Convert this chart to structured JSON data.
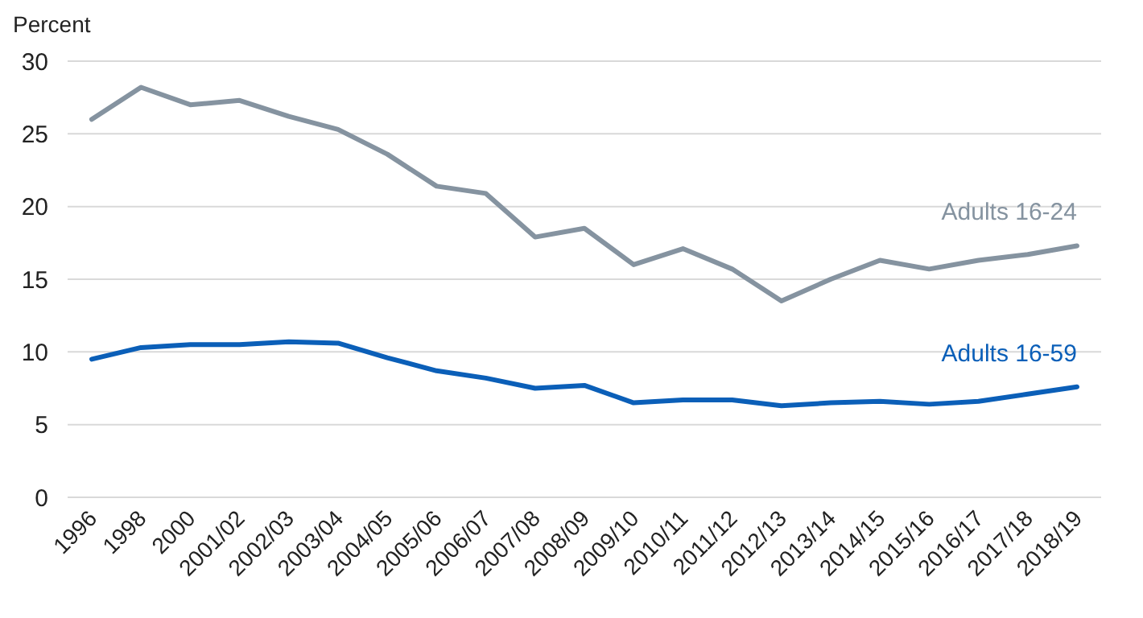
{
  "chart_data": {
    "type": "line",
    "ylabel": "Percent",
    "categories": [
      "1996",
      "1998",
      "2000",
      "2001/02",
      "2002/03",
      "2003/04",
      "2004/05",
      "2005/06",
      "2006/07",
      "2007/08",
      "2008/09",
      "2009/10",
      "2010/11",
      "2011/12",
      "2012/13",
      "2013/14",
      "2014/15",
      "2015/16",
      "2016/17",
      "2017/18",
      "2018/19"
    ],
    "series": [
      {
        "name": "Adults 16-24",
        "color": "#8593a0",
        "values": [
          26.0,
          28.2,
          27.0,
          27.3,
          26.2,
          25.3,
          23.6,
          21.4,
          20.9,
          17.9,
          18.5,
          16.0,
          17.1,
          15.7,
          13.5,
          15.0,
          16.3,
          15.7,
          16.3,
          16.7,
          17.3
        ]
      },
      {
        "name": "Adults 16-59",
        "color": "#0b5fb8",
        "values": [
          9.5,
          10.3,
          10.5,
          10.5,
          10.7,
          10.6,
          9.6,
          8.7,
          8.2,
          7.5,
          7.7,
          6.5,
          6.7,
          6.7,
          6.3,
          6.5,
          6.6,
          6.4,
          6.6,
          7.1,
          7.6
        ]
      }
    ],
    "ylim": [
      0,
      30
    ],
    "yticks": [
      0,
      5,
      10,
      15,
      20,
      25,
      30
    ],
    "grid": "y",
    "legend": false,
    "marker": "none",
    "line_style": "solid"
  }
}
